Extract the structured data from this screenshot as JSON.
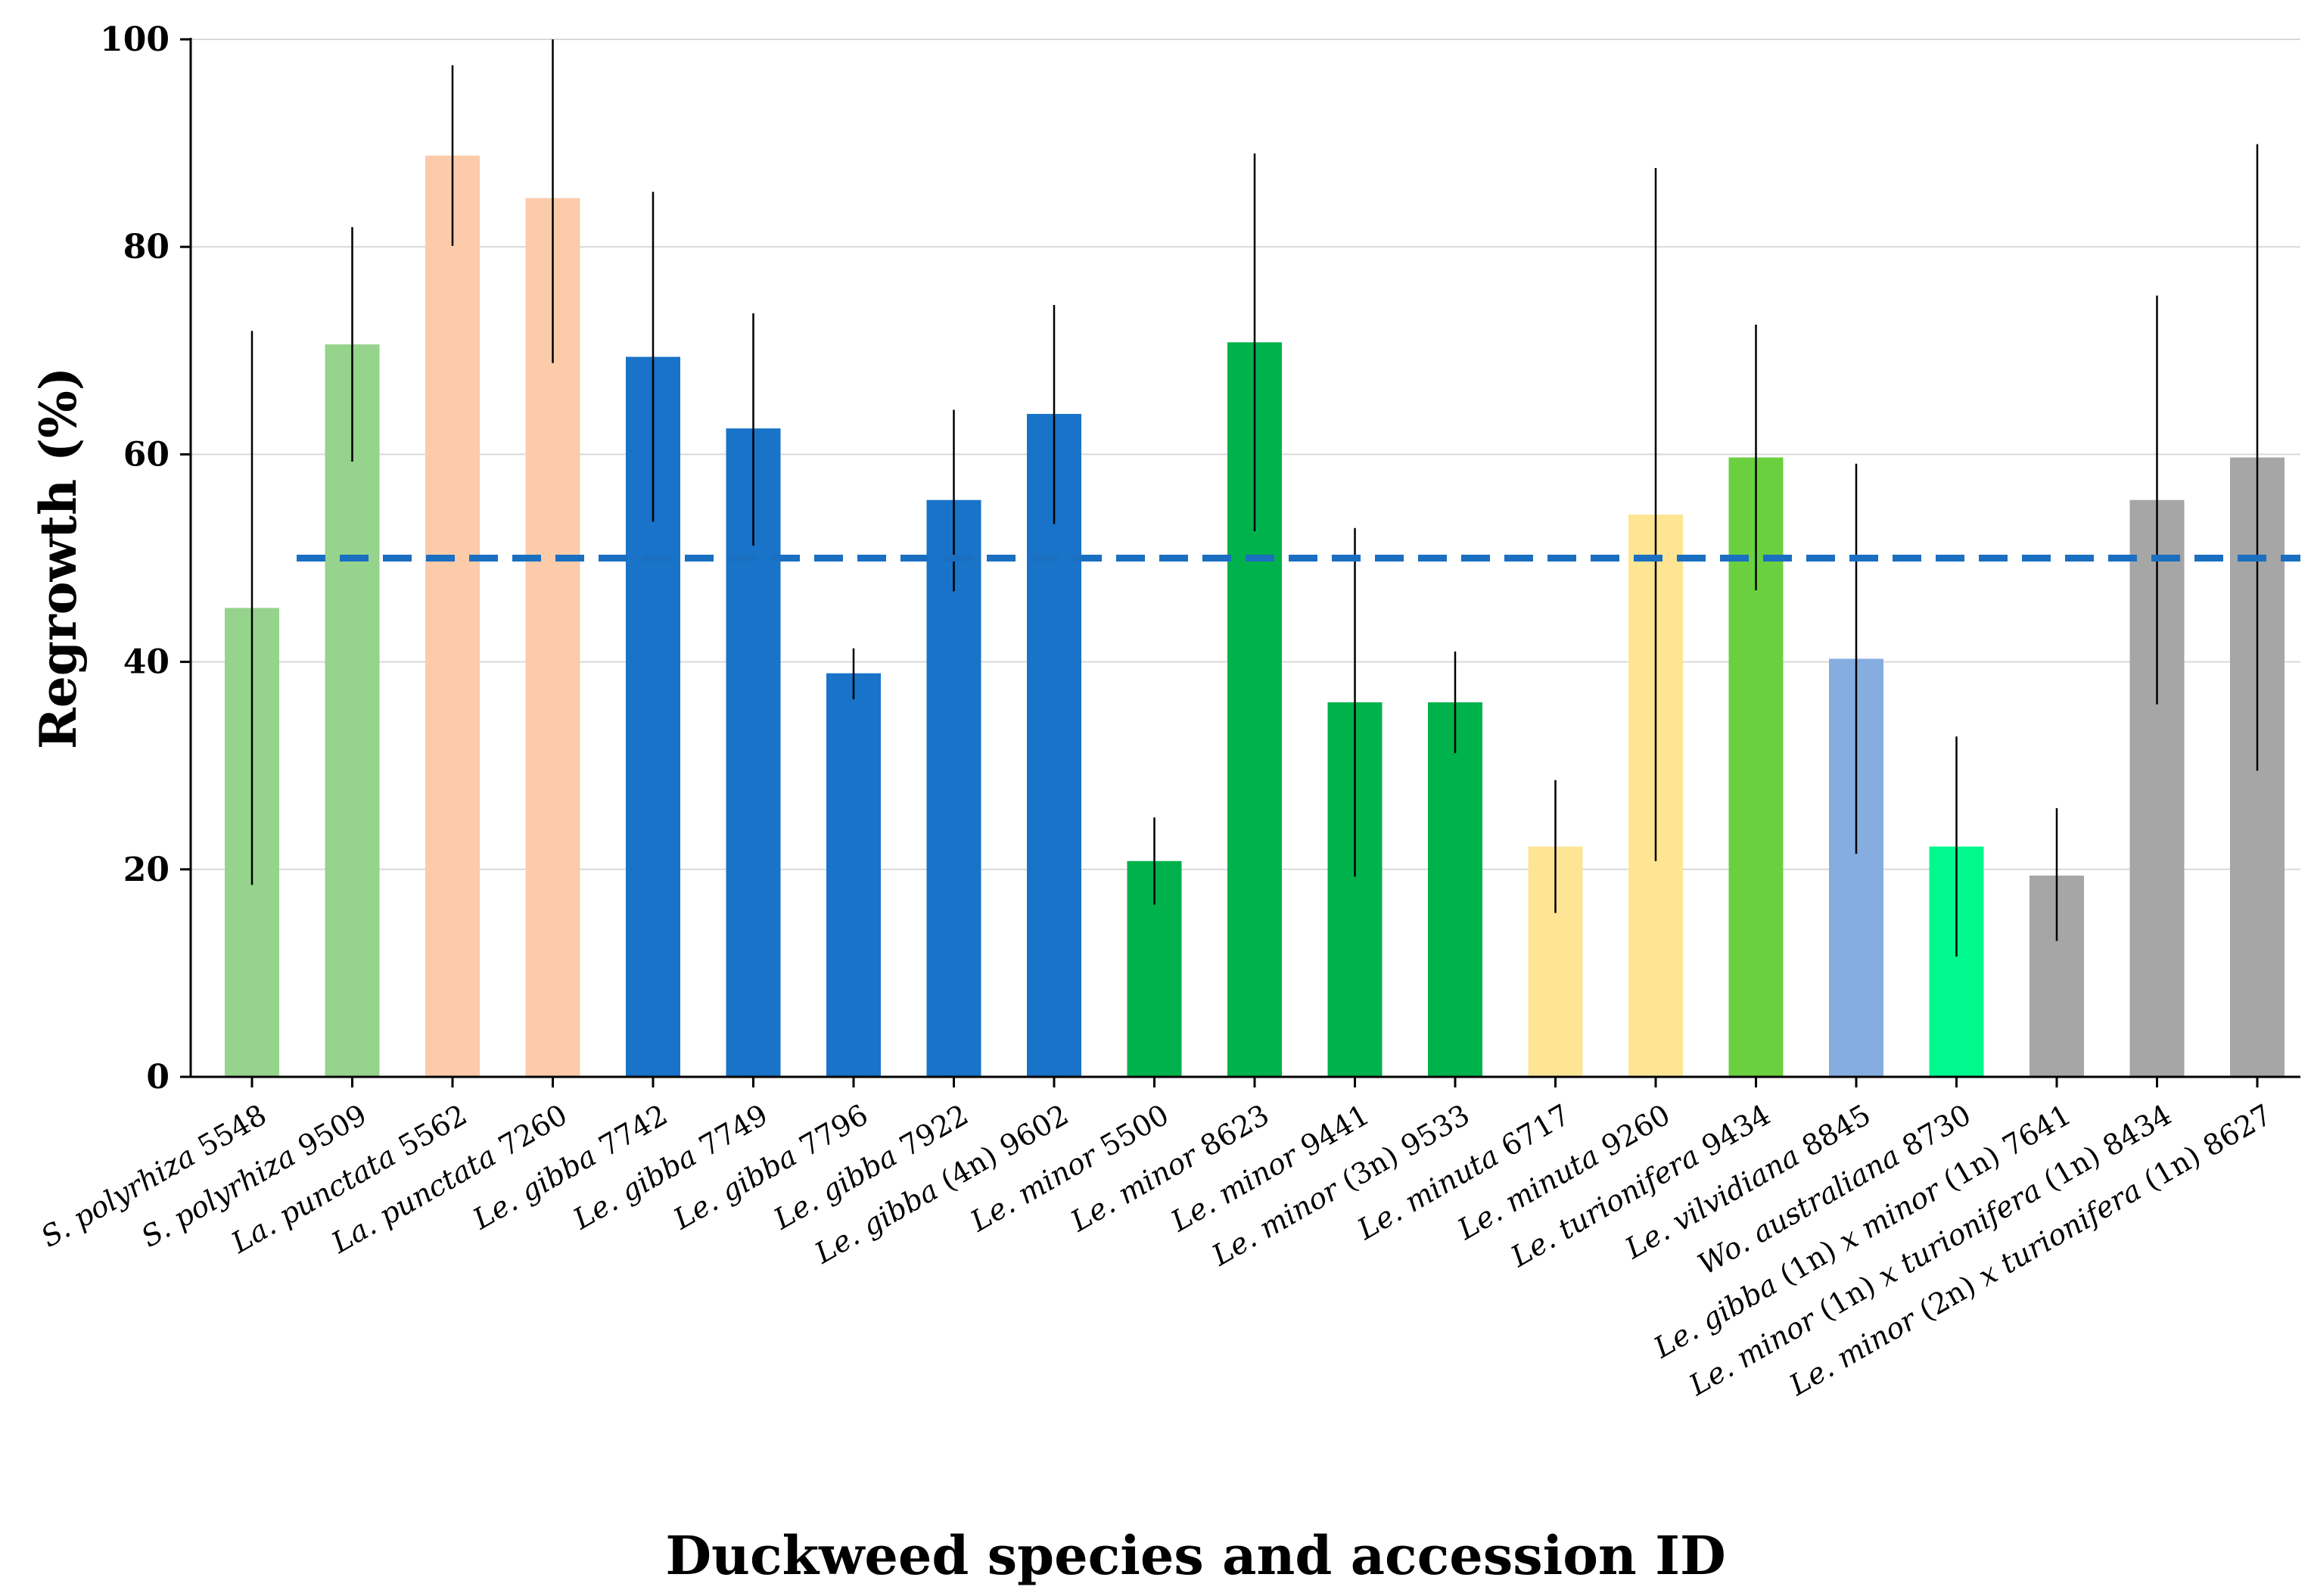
{
  "chart_data": {
    "type": "bar",
    "title": "",
    "xlabel": "Duckweed species and accession ID",
    "ylabel": "Regrowth (%)",
    "ylim": [
      0,
      100
    ],
    "yticks": [
      0,
      20,
      40,
      60,
      80,
      100
    ],
    "grid": "horizontal",
    "reference_line": {
      "value": 50,
      "style": "dashed",
      "color": "#1a6fc0"
    },
    "categories": [
      {
        "parts": [
          {
            "t": "S. polyrhiza",
            "i": true
          },
          {
            "t": " 5548",
            "i": false
          }
        ]
      },
      {
        "parts": [
          {
            "t": "S. polyrhiza",
            "i": true
          },
          {
            "t": " 9509",
            "i": false
          }
        ]
      },
      {
        "parts": [
          {
            "t": "La. punctata",
            "i": true
          },
          {
            "t": " 5562",
            "i": false
          }
        ]
      },
      {
        "parts": [
          {
            "t": "La. punctata",
            "i": true
          },
          {
            "t": " 7260",
            "i": false
          }
        ]
      },
      {
        "parts": [
          {
            "t": "Le. gibba",
            "i": true
          },
          {
            "t": " 7742",
            "i": false
          }
        ]
      },
      {
        "parts": [
          {
            "t": "Le. gibba",
            "i": true
          },
          {
            "t": " 7749",
            "i": false
          }
        ]
      },
      {
        "parts": [
          {
            "t": "Le. gibba",
            "i": true
          },
          {
            "t": " 7796",
            "i": false
          }
        ]
      },
      {
        "parts": [
          {
            "t": "Le. gibba",
            "i": true
          },
          {
            "t": " 7922",
            "i": false
          }
        ]
      },
      {
        "parts": [
          {
            "t": "Le. gibba",
            "i": true
          },
          {
            "t": " (4n) 9602",
            "i": false
          }
        ]
      },
      {
        "parts": [
          {
            "t": "Le. minor",
            "i": true
          },
          {
            "t": " 5500",
            "i": false
          }
        ]
      },
      {
        "parts": [
          {
            "t": "Le. minor",
            "i": true
          },
          {
            "t": " 8623",
            "i": false
          }
        ]
      },
      {
        "parts": [
          {
            "t": "Le. minor",
            "i": true
          },
          {
            "t": " 9441",
            "i": false
          }
        ]
      },
      {
        "parts": [
          {
            "t": "Le. minor",
            "i": true
          },
          {
            "t": " (3n) 9533",
            "i": false
          }
        ]
      },
      {
        "parts": [
          {
            "t": "Le. minuta",
            "i": true
          },
          {
            "t": " 6717",
            "i": false
          }
        ]
      },
      {
        "parts": [
          {
            "t": "Le. minuta",
            "i": true
          },
          {
            "t": " 9260",
            "i": false
          }
        ]
      },
      {
        "parts": [
          {
            "t": "Le. turionifera",
            "i": true
          },
          {
            "t": " 9434",
            "i": false
          }
        ]
      },
      {
        "parts": [
          {
            "t": "Le. vilvidiana",
            "i": true
          },
          {
            "t": " 8845",
            "i": false
          }
        ]
      },
      {
        "parts": [
          {
            "t": "Wo. australiana",
            "i": true
          },
          {
            "t": " 8730",
            "i": false
          }
        ]
      },
      {
        "parts": [
          {
            "t": "Le. gibba",
            "i": true
          },
          {
            "t": " (1n) ",
            "i": false
          },
          {
            "t": "x minor",
            "i": true
          },
          {
            "t": " (1n) 7641",
            "i": false
          }
        ]
      },
      {
        "parts": [
          {
            "t": "Le. minor",
            "i": true
          },
          {
            "t": " (1n) ",
            "i": false
          },
          {
            "t": "x turionifera",
            "i": true
          },
          {
            "t": " (1n) 8434",
            "i": false
          }
        ]
      },
      {
        "parts": [
          {
            "t": "Le. minor",
            "i": true
          },
          {
            "t": " (2n) ",
            "i": false
          },
          {
            "t": "x turionifera",
            "i": true
          },
          {
            "t": " (1n) 8627",
            "i": false
          }
        ]
      }
    ],
    "values": [
      45.2,
      70.6,
      88.8,
      84.7,
      69.4,
      62.5,
      38.9,
      55.6,
      63.9,
      20.8,
      70.8,
      36.1,
      36.1,
      22.2,
      54.2,
      59.7,
      40.3,
      22.2,
      19.4,
      55.6,
      59.7
    ],
    "error_low": [
      18.5,
      59.3,
      80.1,
      68.8,
      53.5,
      51.2,
      36.4,
      46.8,
      53.3,
      16.6,
      52.6,
      19.3,
      31.2,
      15.8,
      20.8,
      46.9,
      21.5,
      11.6,
      13.1,
      35.9,
      29.5
    ],
    "error_high": [
      71.9,
      81.9,
      97.5,
      100.0,
      85.3,
      73.6,
      41.3,
      64.3,
      74.4,
      25.0,
      89.0,
      52.9,
      41.0,
      28.6,
      87.6,
      72.5,
      59.1,
      32.8,
      25.9,
      75.3,
      89.9
    ],
    "colors": [
      "#96d38c",
      "#96d38c",
      "#fbcbaa",
      "#fbcbaa",
      "#1973c8",
      "#1973c8",
      "#1973c8",
      "#1973c8",
      "#1973c8",
      "#00b24b",
      "#00b24b",
      "#00b24b",
      "#00b24b",
      "#fde594",
      "#fde594",
      "#6ad040",
      "#86ade0",
      "#00f98c",
      "#a6a6a6",
      "#a6a6a6",
      "#a6a6a6"
    ]
  }
}
